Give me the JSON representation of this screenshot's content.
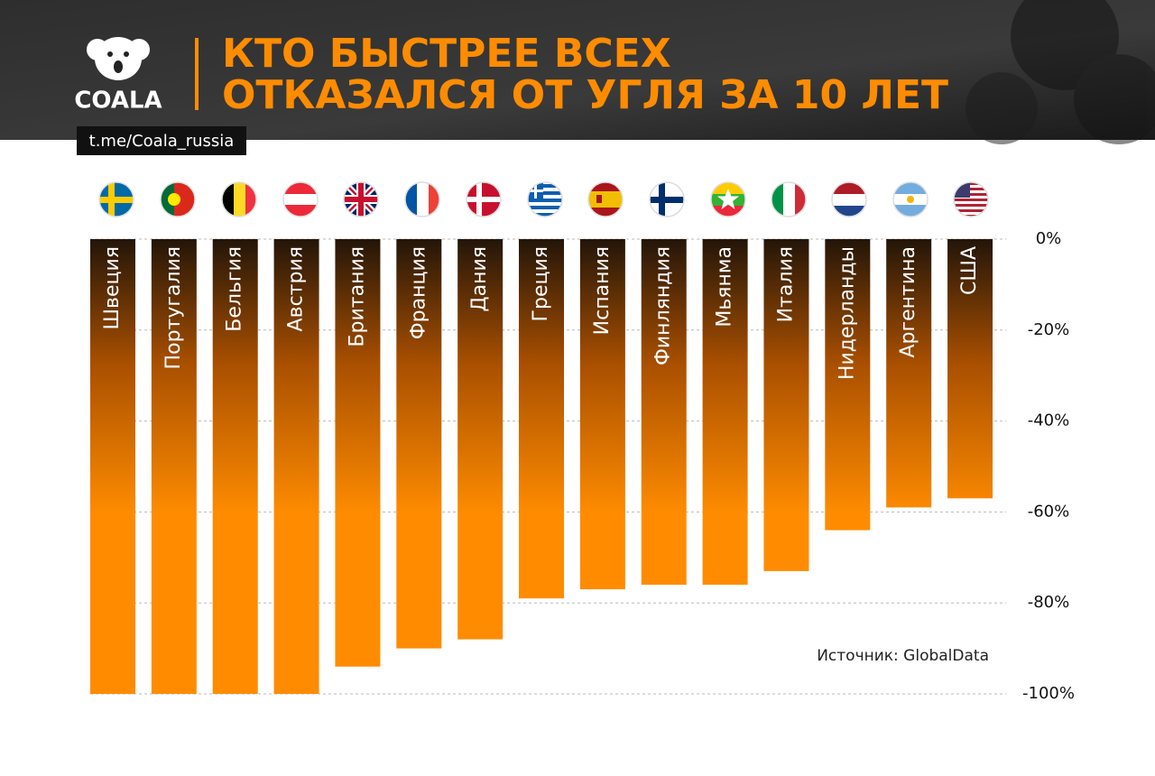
{
  "chart_data": {
    "type": "bar",
    "title": [
      "КТО БЫСТРЕЕ ВСЕХ",
      "ОТКАЗАЛСЯ ОТ УГЛЯ ЗА 10 ЛЕТ"
    ],
    "logo": "COALA",
    "channel": "t.me/Coala_russia",
    "source": "Источник: GlobalData",
    "categories": [
      "Швеция",
      "Португалия",
      "Бельгия",
      "Австрия",
      "Британия",
      "Франция",
      "Дания",
      "Греция",
      "Испания",
      "Финляндия",
      "Мьянма",
      "Италия",
      "Нидерланды",
      "Аргентина",
      "США"
    ],
    "values": [
      -100,
      -100,
      -100,
      -100,
      -94,
      -90,
      -88,
      -79,
      -77,
      -76,
      -76,
      -73,
      -64,
      -59,
      -57
    ],
    "color": "#ff8c00",
    "ylim": [
      -100,
      0
    ],
    "yticks": [
      {
        "value": 0,
        "label": "0%"
      },
      {
        "value": -20,
        "label": "-20%"
      },
      {
        "value": -40,
        "label": "-40%"
      },
      {
        "value": -60,
        "label": "-60%"
      },
      {
        "value": -80,
        "label": "-80%"
      },
      {
        "value": -100,
        "label": "-100%"
      }
    ],
    "grid": true
  }
}
